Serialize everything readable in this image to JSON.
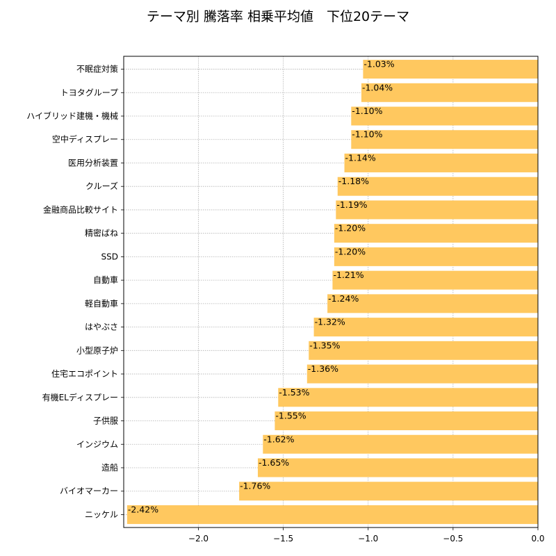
{
  "chart_data": {
    "type": "bar",
    "orientation": "horizontal",
    "title": "テーマ別 騰落率 相乗平均値　下位20テーマ",
    "xlabel": "",
    "ylabel": "",
    "xlim": [
      -2.44,
      0.0
    ],
    "xticks": [
      -2.0,
      -1.5,
      -1.0,
      -0.5,
      0.0
    ],
    "xtick_labels": [
      "−2.0",
      "−1.5",
      "−1.0",
      "−0.5",
      "0.0"
    ],
    "grid": true,
    "bar_color": "#FFC85F",
    "categories": [
      "不眠症対策",
      "トヨタグループ",
      "ハイブリッド建機・機械",
      "空中ディスプレー",
      "医用分析装置",
      "クルーズ",
      "金融商品比較サイト",
      "精密ばね",
      "SSD",
      "自動車",
      "軽自動車",
      "はやぶさ",
      "小型原子炉",
      "住宅エコポイント",
      "有機ELディスプレー",
      "子供服",
      "インジウム",
      "造船",
      "バイオマーカー",
      "ニッケル"
    ],
    "values": [
      -1.03,
      -1.04,
      -1.1,
      -1.1,
      -1.14,
      -1.18,
      -1.19,
      -1.2,
      -1.2,
      -1.21,
      -1.24,
      -1.32,
      -1.35,
      -1.36,
      -1.53,
      -1.55,
      -1.62,
      -1.65,
      -1.76,
      -2.42
    ],
    "value_labels": [
      "-1.03%",
      "-1.04%",
      "-1.10%",
      "-1.10%",
      "-1.14%",
      "-1.18%",
      "-1.19%",
      "-1.20%",
      "-1.20%",
      "-1.21%",
      "-1.24%",
      "-1.32%",
      "-1.35%",
      "-1.36%",
      "-1.53%",
      "-1.55%",
      "-1.62%",
      "-1.65%",
      "-1.76%",
      "-2.42%"
    ]
  }
}
